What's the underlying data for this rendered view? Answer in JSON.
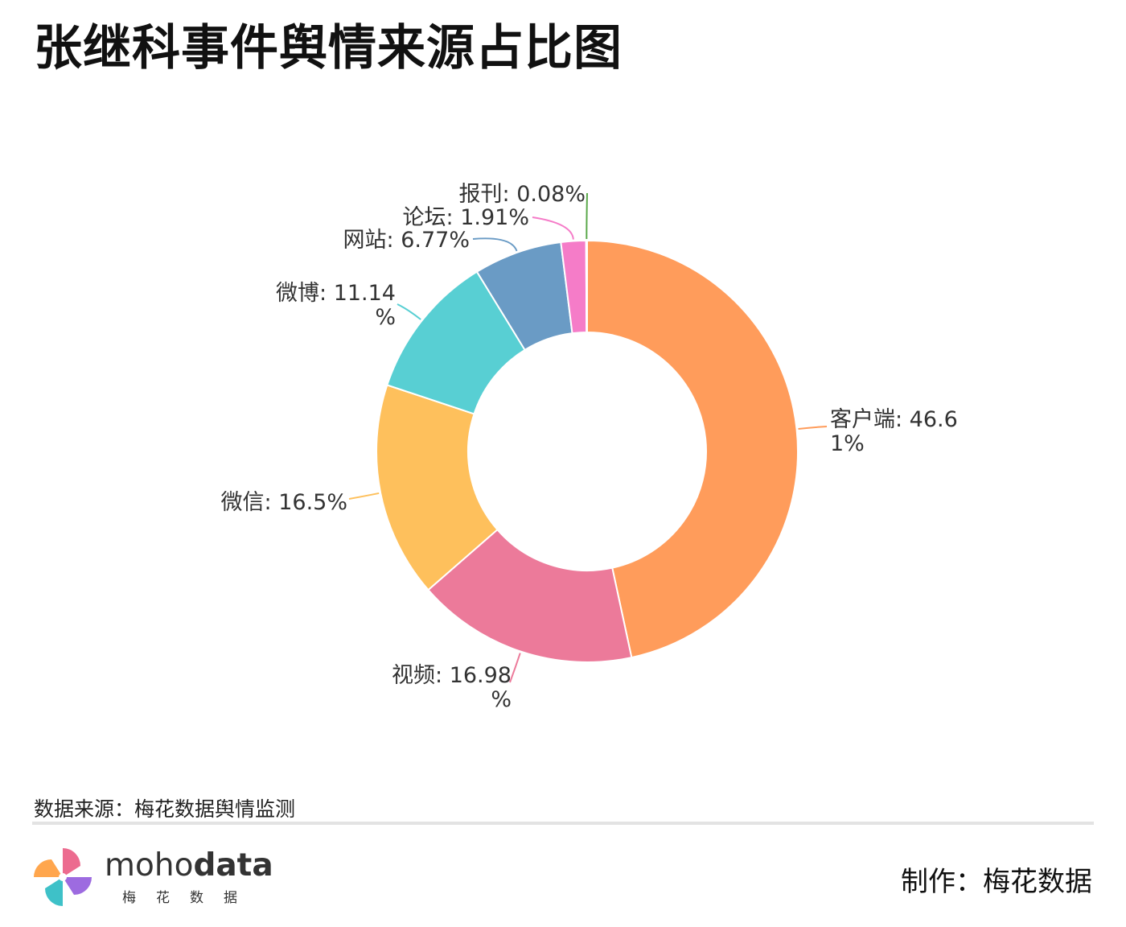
{
  "title": "张继科事件舆情来源占比图",
  "chart_data": {
    "type": "pie",
    "donut": true,
    "series": [
      {
        "name": "客户端",
        "value": 46.61,
        "label": "客户端: 46.6\n1%",
        "color": "#FF9C5B"
      },
      {
        "name": "视频",
        "value": 16.98,
        "label": "视频: 16.98\n%",
        "color": "#EC7A9A"
      },
      {
        "name": "微信",
        "value": 16.5,
        "label": "微信: 16.5%",
        "color": "#FEC05C"
      },
      {
        "name": "微博",
        "value": 11.14,
        "label": "微博: 11.14\n%",
        "color": "#58CFD3"
      },
      {
        "name": "网站",
        "value": 6.77,
        "label": "网站: 6.77%",
        "color": "#6A9BC5"
      },
      {
        "name": "论坛",
        "value": 1.91,
        "label": "论坛: 1.91%",
        "color": "#F57CC8"
      },
      {
        "name": "报刊",
        "value": 0.08,
        "label": "报刊: 0.08%",
        "color": "#5AA84A"
      }
    ],
    "legend": "none"
  },
  "footer": {
    "source": "数据来源：梅花数据舆情监测",
    "brand_prefix": "moho",
    "brand_suffix": "data",
    "brand_cn": "梅花数据",
    "credit": "制作：梅花数据"
  }
}
